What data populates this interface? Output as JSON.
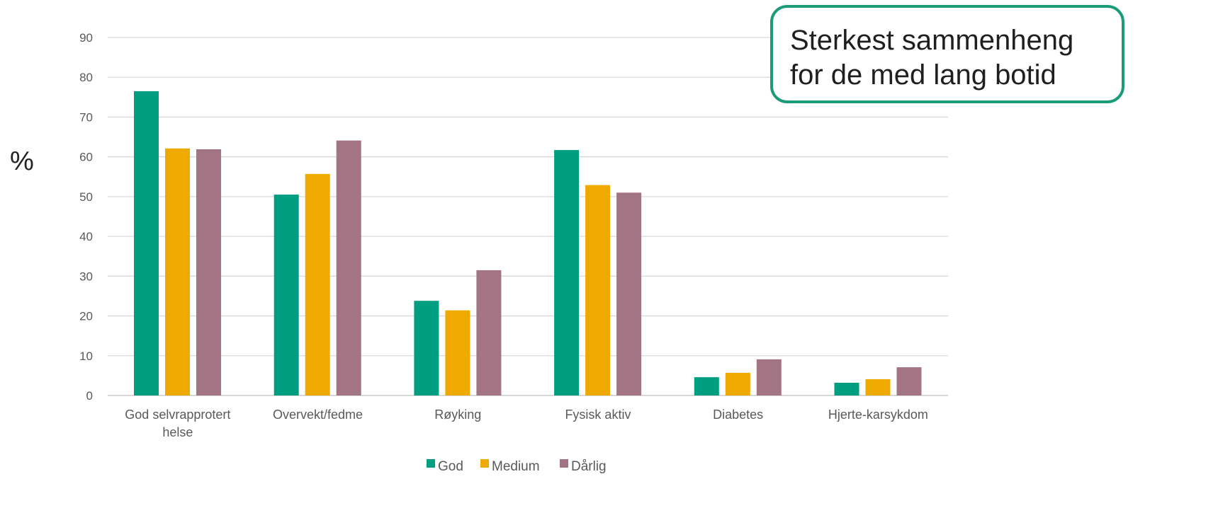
{
  "chart_data": {
    "type": "bar",
    "ylabel": "%",
    "ylim": [
      0,
      90
    ],
    "yticks": [
      0,
      10,
      20,
      30,
      40,
      50,
      60,
      70,
      80,
      90
    ],
    "grid": true,
    "legend_position": "bottom",
    "categories": [
      [
        "God selvrapprotert",
        "helse"
      ],
      [
        "Overvekt/fedme"
      ],
      [
        "Røyking"
      ],
      [
        "Fysisk aktiv"
      ],
      [
        "Diabetes"
      ],
      [
        "Hjerte-karsykdom"
      ]
    ],
    "series": [
      {
        "name": "God",
        "color": "#009e80",
        "values": [
          76.5,
          50.5,
          23.8,
          61.7,
          4.6,
          3.2
        ]
      },
      {
        "name": "Medium",
        "color": "#eeaa00",
        "values": [
          62.1,
          55.7,
          21.4,
          52.9,
          5.7,
          4.1
        ]
      },
      {
        "name": "Dårlig",
        "color": "#a37484",
        "values": [
          61.9,
          64.1,
          31.5,
          51.0,
          9.1,
          7.1
        ]
      }
    ]
  },
  "annotation": {
    "line1": "Sterkest sammenheng",
    "line2": "for de med lang botid"
  },
  "colors": {
    "grid": "#d9d9d9",
    "axis": "#bfbfbf",
    "tick_text": "#595959",
    "callout_border": "#1a9c78"
  }
}
